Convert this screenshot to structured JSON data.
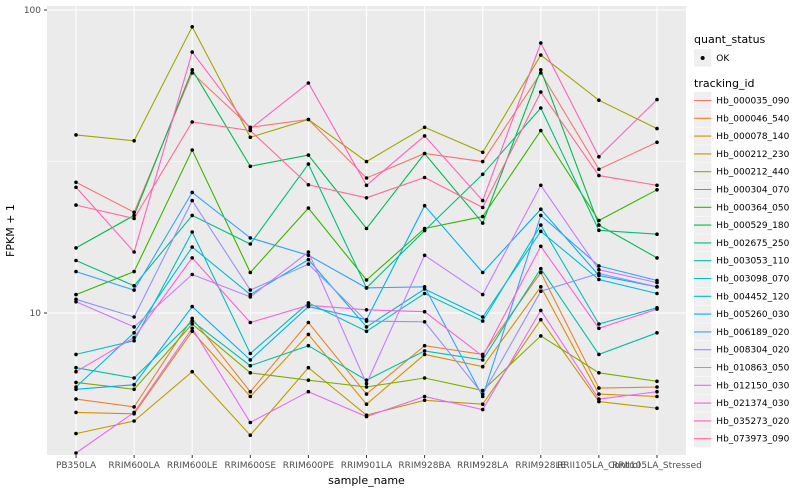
{
  "figure": {
    "background": "#ffffff",
    "panel_background": "#ebebeb",
    "gridline_color": "#ffffff",
    "tick_color": "#333333",
    "tick_label_color": "#4d4d4d",
    "axis_title_color": "#000000",
    "legend_key_fill": "#efefef",
    "point_color": "#000000"
  },
  "chart_data": {
    "type": "line",
    "title": "",
    "xlabel": "sample_name",
    "ylabel": "FPKM + 1",
    "y_scale": "log10",
    "ylim": [
      3.2,
      105
    ],
    "y_tick_labels": [
      "10",
      "100"
    ],
    "y_major_gridlines": [
      10,
      100
    ],
    "y_minor_gridlines": [
      31.62
    ],
    "grid": true,
    "legend_position": "right",
    "legend_quant": {
      "title": "quant_status",
      "items": [
        {
          "label": "OK",
          "marker": "point",
          "color": "#000000"
        }
      ]
    },
    "legend_tracking": {
      "title": "tracking_id"
    },
    "point_marker": {
      "shape": "dot",
      "color": "#000000",
      "label": "OK"
    },
    "categories": [
      "PB350LA",
      "RRIM600LA",
      "RRIM600LE",
      "RRIM600SE",
      "RRIM600PE",
      "RRIM901LA",
      "RRIM928BA",
      "RRIM928LA",
      "RRIM928LE",
      "RRII105LA_Control",
      "RRII105LA_Stressed"
    ],
    "series": [
      {
        "name": "Hb_000035_090",
        "color": "#F8766D",
        "values": [
          27.0,
          21.5,
          62.0,
          41.0,
          43.5,
          27.9,
          33.6,
          31.6,
          62.0,
          29.8,
          36.6
        ]
      },
      {
        "name": "Hb_000046_540",
        "color": "#EA8331",
        "values": [
          5.2,
          4.9,
          9.6,
          5.5,
          9.3,
          5.4,
          7.8,
          7.3,
          13.6,
          5.65,
          5.7
        ]
      },
      {
        "name": "Hb_000078_140",
        "color": "#D89000",
        "values": [
          4.7,
          4.65,
          8.7,
          5.3,
          8.5,
          5.0,
          7.3,
          6.65,
          12.2,
          5.4,
          5.3
        ]
      },
      {
        "name": "Hb_000212_230",
        "color": "#C09B00",
        "values": [
          4.0,
          4.4,
          6.4,
          3.95,
          6.6,
          4.6,
          5.15,
          5.0,
          9.5,
          5.1,
          4.85
        ]
      },
      {
        "name": "Hb_000212_440",
        "color": "#A3A500",
        "values": [
          38.7,
          37.0,
          88.0,
          38.0,
          43.5,
          31.6,
          41.0,
          33.9,
          71.0,
          50.4,
          40.6
        ]
      },
      {
        "name": "Hb_000304_070",
        "color": "#7CAE00",
        "values": [
          5.9,
          5.6,
          9.2,
          6.35,
          6.0,
          5.7,
          6.1,
          5.55,
          8.4,
          6.35,
          5.95
        ]
      },
      {
        "name": "Hb_000364_050",
        "color": "#39B600",
        "values": [
          11.5,
          13.7,
          34.5,
          13.6,
          22.2,
          12.85,
          19.0,
          20.8,
          40.0,
          20.2,
          25.5
        ]
      },
      {
        "name": "Hb_000529_180",
        "color": "#00BB4E",
        "values": [
          16.4,
          21.0,
          63.5,
          30.5,
          33.2,
          19.0,
          33.6,
          19.8,
          63.5,
          19.5,
          15.2
        ]
      },
      {
        "name": "Hb_002675_250",
        "color": "#00BF7D",
        "values": [
          14.9,
          12.3,
          21.0,
          16.9,
          31.0,
          12.1,
          18.7,
          28.7,
          47.5,
          18.75,
          18.2
        ]
      },
      {
        "name": "Hb_003053_110",
        "color": "#00C1A3",
        "values": [
          6.6,
          6.1,
          9.4,
          6.7,
          7.8,
          6.0,
          7.5,
          7.0,
          14.0,
          7.3,
          8.6
        ]
      },
      {
        "name": "Hb_003098_070",
        "color": "#00BFC4",
        "values": [
          7.3,
          8.1,
          18.5,
          7.35,
          10.8,
          8.7,
          11.6,
          9.4,
          19.5,
          9.2,
          10.4
        ]
      },
      {
        "name": "Hb_004452_120",
        "color": "#00BAE0",
        "values": [
          5.7,
          8.6,
          16.5,
          11.5,
          15.0,
          9.0,
          12.0,
          9.7,
          18.6,
          12.9,
          11.6
        ]
      },
      {
        "name": "Hb_005260_030",
        "color": "#00B0F6",
        "values": [
          5.6,
          5.8,
          10.5,
          7.0,
          10.5,
          9.5,
          22.6,
          13.6,
          22.0,
          13.3,
          12.2
        ]
      },
      {
        "name": "Hb_006189_020",
        "color": "#35A2FF",
        "values": [
          13.7,
          11.9,
          25.0,
          17.7,
          15.5,
          12.1,
          12.2,
          5.3,
          21.0,
          14.3,
          12.8
        ]
      },
      {
        "name": "Hb_008304_020",
        "color": "#9590FF",
        "values": [
          11.1,
          9.7,
          23.5,
          11.9,
          14.5,
          9.4,
          9.35,
          5.4,
          11.8,
          13.5,
          12.2
        ]
      },
      {
        "name": "Hb_010863_050",
        "color": "#C77CFF",
        "values": [
          10.9,
          9.0,
          13.4,
          11.3,
          15.9,
          5.85,
          15.5,
          11.5,
          26.4,
          13.9,
          12.6
        ]
      },
      {
        "name": "Hb_012150_030",
        "color": "#E76BF3",
        "values": [
          3.45,
          4.7,
          8.9,
          4.35,
          5.5,
          4.55,
          5.3,
          4.8,
          10.2,
          5.2,
          5.5
        ]
      },
      {
        "name": "Hb_021374_030",
        "color": "#FA62DB",
        "values": [
          6.4,
          8.3,
          15.2,
          9.3,
          10.6,
          10.25,
          10.1,
          7.2,
          16.6,
          8.9,
          10.3
        ]
      },
      {
        "name": "Hb_035273_020",
        "color": "#FF62BC",
        "values": [
          26.0,
          15.9,
          72.6,
          40.5,
          57.4,
          26.4,
          38.4,
          23.5,
          77.8,
          32.8,
          50.6
        ]
      },
      {
        "name": "Hb_073973_090",
        "color": "#FF6A98",
        "values": [
          22.7,
          20.5,
          42.7,
          40.0,
          26.5,
          24.0,
          28.0,
          22.3,
          53.6,
          28.4,
          26.4
        ]
      }
    ]
  }
}
